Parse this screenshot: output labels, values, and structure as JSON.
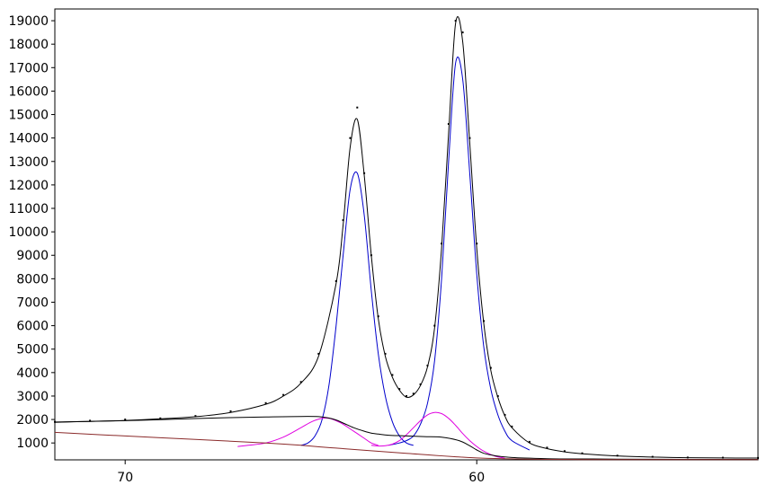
{
  "chart_data": {
    "type": "line",
    "title": "",
    "xlabel": "",
    "ylabel": "",
    "x_reversed": true,
    "xlim": [
      72,
      52
    ],
    "ylim": [
      280,
      19500
    ],
    "grid": false,
    "x_ticks": [
      {
        "value": 70,
        "label": "70"
      },
      {
        "value": 60,
        "label": "60"
      }
    ],
    "y_ticks": [
      {
        "value": 1000,
        "label": "1000"
      },
      {
        "value": 2000,
        "label": "2000"
      },
      {
        "value": 3000,
        "label": "3000"
      },
      {
        "value": 4000,
        "label": "4000"
      },
      {
        "value": 5000,
        "label": "5000"
      },
      {
        "value": 6000,
        "label": "6000"
      },
      {
        "value": 7000,
        "label": "7000"
      },
      {
        "value": 8000,
        "label": "8000"
      },
      {
        "value": 9000,
        "label": "9000"
      },
      {
        "value": 10000,
        "label": "10000"
      },
      {
        "value": 11000,
        "label": "11000"
      },
      {
        "value": 12000,
        "label": "12000"
      },
      {
        "value": 13000,
        "label": "13000"
      },
      {
        "value": 14000,
        "label": "14000"
      },
      {
        "value": 15000,
        "label": "15000"
      },
      {
        "value": 16000,
        "label": "16000"
      },
      {
        "value": 17000,
        "label": "17000"
      },
      {
        "value": 18000,
        "label": "18000"
      },
      {
        "value": 19000,
        "label": "19000"
      }
    ],
    "series": [
      {
        "role": "measured",
        "style": "dots",
        "color": "#000000",
        "x": [
          72,
          71,
          70,
          69,
          68,
          67,
          66,
          65.5,
          65,
          64.5,
          64,
          63.8,
          63.6,
          63.4,
          63.2,
          63,
          62.8,
          62.6,
          62.4,
          62.2,
          62,
          61.8,
          61.6,
          61.4,
          61.2,
          61,
          60.8,
          60.6,
          60.4,
          60.2,
          60,
          59.8,
          59.6,
          59.4,
          59.2,
          59,
          58.5,
          58,
          57.5,
          57,
          56,
          55,
          54,
          53,
          52
        ],
        "y": [
          1900,
          1950,
          2000,
          2050,
          2150,
          2350,
          2700,
          3050,
          3600,
          4800,
          7900,
          10500,
          14000,
          15300,
          12500,
          9000,
          6400,
          4800,
          3900,
          3300,
          3000,
          3100,
          3500,
          4300,
          6000,
          9500,
          14600,
          19000,
          18500,
          14000,
          9500,
          6200,
          4200,
          3000,
          2200,
          1700,
          1050,
          800,
          650,
          560,
          460,
          410,
          380,
          370,
          360
        ]
      },
      {
        "role": "envelope",
        "style": "line",
        "color": "#000000",
        "x": [
          72,
          71,
          70,
          69,
          68,
          67,
          66,
          65.5,
          65,
          64.5,
          64,
          63.8,
          63.6,
          63.4,
          63.2,
          63,
          62.8,
          62.6,
          62.4,
          62.2,
          62,
          61.8,
          61.6,
          61.4,
          61.2,
          61,
          60.8,
          60.6,
          60.4,
          60.2,
          60,
          59.8,
          59.6,
          59.4,
          59.2,
          59,
          58.5,
          58,
          57.5,
          57,
          56,
          55,
          54,
          53,
          52
        ],
        "y": [
          1880,
          1920,
          1960,
          2030,
          2120,
          2300,
          2650,
          3000,
          3550,
          4700,
          7800,
          10300,
          13600,
          14800,
          12400,
          9000,
          6300,
          4700,
          3800,
          3250,
          2950,
          3050,
          3450,
          4250,
          5900,
          9300,
          14200,
          18900,
          18100,
          13800,
          9300,
          6100,
          4100,
          2950,
          2150,
          1650,
          1000,
          760,
          620,
          540,
          450,
          400,
          370,
          360,
          355
        ]
      },
      {
        "role": "component-1",
        "style": "line",
        "color": "#0000cc",
        "x": [
          65,
          64.8,
          64.6,
          64.4,
          64.2,
          64,
          63.8,
          63.6,
          63.4,
          63.2,
          63,
          62.8,
          62.6,
          62.4,
          62.2,
          62,
          61.8
        ],
        "y": [
          900,
          1000,
          1300,
          2000,
          3500,
          6000,
          9000,
          11800,
          12500,
          10700,
          7500,
          4800,
          3000,
          1900,
          1300,
          1000,
          900
        ]
      },
      {
        "role": "component-2",
        "style": "line",
        "color": "#0000cc",
        "x": [
          62.5,
          62.2,
          62,
          61.8,
          61.6,
          61.4,
          61.2,
          61,
          60.8,
          60.6,
          60.4,
          60.2,
          60,
          59.8,
          59.6,
          59.4,
          59.2,
          59,
          58.5
        ],
        "y": [
          900,
          1000,
          1100,
          1300,
          1800,
          2700,
          4500,
          8000,
          13000,
          17200,
          16500,
          12500,
          8200,
          5100,
          3300,
          2200,
          1500,
          1100,
          700
        ]
      },
      {
        "role": "component-3",
        "style": "line",
        "color": "#e000e0",
        "x": [
          66.8,
          66.5,
          66,
          65.5,
          65,
          64.7,
          64.4,
          64.2,
          64,
          63.8,
          63.5,
          63.2,
          63,
          62.8
        ],
        "y": [
          850,
          900,
          1000,
          1250,
          1650,
          1900,
          2050,
          2050,
          1950,
          1800,
          1500,
          1200,
          1000,
          900
        ]
      },
      {
        "role": "component-4",
        "style": "line",
        "color": "#e000e0",
        "x": [
          63,
          62.8,
          62.6,
          62.4,
          62.2,
          62,
          61.8,
          61.6,
          61.4,
          61.2,
          61,
          60.8,
          60.6,
          60.4,
          60.2,
          60,
          59.8,
          59.5,
          59.2
        ],
        "y": [
          900,
          870,
          880,
          950,
          1100,
          1350,
          1650,
          1950,
          2200,
          2300,
          2250,
          2050,
          1750,
          1400,
          1100,
          850,
          650,
          450,
          350
        ]
      },
      {
        "role": "background-sum",
        "style": "line",
        "color": "#000000",
        "x": [
          72,
          70,
          68,
          67,
          66,
          65,
          64.5,
          64.2,
          64,
          63.8,
          63.5,
          63.2,
          63,
          62.8,
          62.5,
          62,
          61.5,
          61,
          60.5,
          60.2,
          60,
          59.8,
          59.5,
          59,
          58,
          57,
          56,
          54,
          52
        ],
        "y": [
          1890,
          1950,
          2040,
          2080,
          2110,
          2130,
          2120,
          2060,
          1980,
          1850,
          1650,
          1500,
          1420,
          1380,
          1330,
          1300,
          1270,
          1250,
          1100,
          880,
          700,
          560,
          460,
          380,
          330,
          320,
          310,
          300,
          300
        ]
      },
      {
        "role": "baseline",
        "style": "line",
        "color": "#8a2a2a",
        "x": [
          72,
          70,
          68,
          66,
          65,
          64,
          62,
          60,
          58,
          56,
          54,
          52
        ],
        "y": [
          1450,
          1300,
          1150,
          1000,
          900,
          780,
          560,
          360,
          300,
          290,
          290,
          290
        ]
      }
    ]
  }
}
